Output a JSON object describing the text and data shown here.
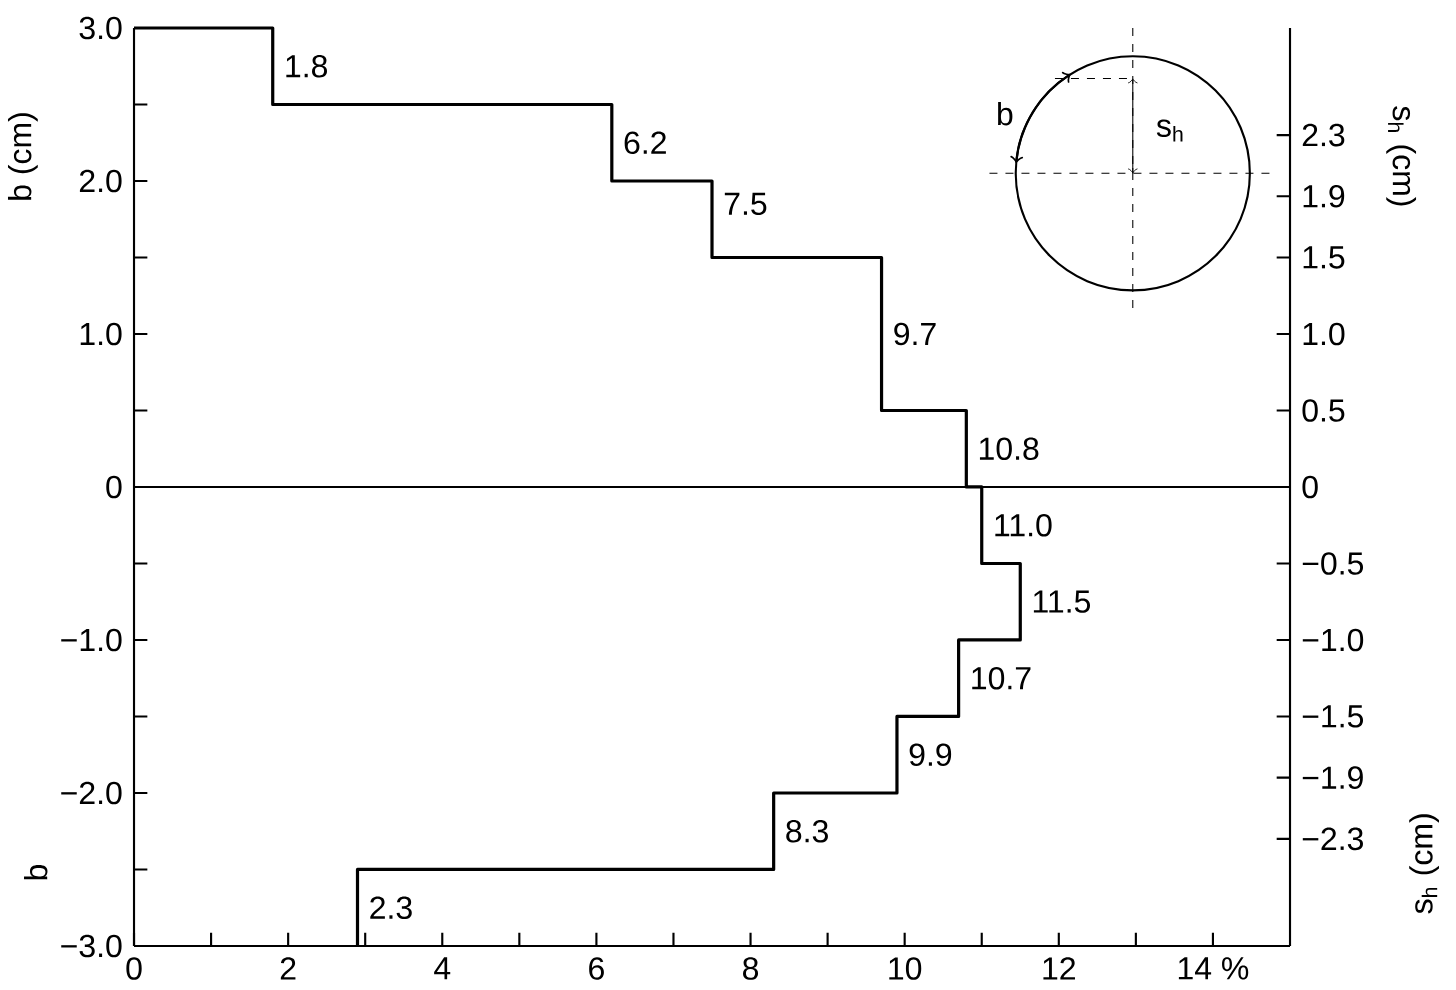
{
  "chart_data": {
    "type": "line",
    "ylabel": "b (cm)",
    "y2label": "s$_{h}$ (cm)",
    "x": [
      0,
      1.8,
      1.8,
      6.2,
      6.2,
      7.5,
      7.5,
      9.7,
      9.7,
      10.8,
      10.8,
      11.0,
      11.0,
      11.5,
      11.5,
      10.7,
      10.7,
      9.9,
      9.9,
      8.3,
      8.3,
      2.9,
      2.9
    ],
    "series": [
      {
        "color": "#000000",
        "values": [
          3,
          3,
          2.5,
          2.5,
          2,
          2,
          1.5,
          1.5,
          0.5,
          0.5,
          0,
          0,
          -0.5,
          -0.5,
          -1,
          -1,
          -1.5,
          -1.5,
          -2,
          -2,
          -2.5,
          -2.5,
          -3
        ]
      }
    ],
    "xlim": [
      0,
      15
    ],
    "ylim": [
      -3,
      3
    ],
    "y2lim": [
      -3,
      3
    ],
    "xticks": [
      0,
      {
        "value": 1,
        "label": null
      },
      2,
      {
        "value": 3,
        "label": null
      },
      4,
      {
        "value": 5,
        "label": null
      },
      6,
      {
        "value": 7,
        "label": null
      },
      8,
      {
        "value": 9,
        "label": null
      },
      10,
      {
        "value": 11,
        "label": null
      },
      12,
      {
        "value": 13,
        "label": null
      },
      {
        "value": 14,
        "label": "14 %"
      }
    ],
    "yticks": [
      {
        "value": -3,
        "label": "−3.0"
      },
      {
        "value": -2.5,
        "label": null
      },
      {
        "value": -2,
        "label": "−2.0"
      },
      {
        "value": -1.5,
        "label": null
      },
      {
        "value": -1,
        "label": "−1.0"
      },
      {
        "value": -0.5,
        "label": null
      },
      0,
      {
        "value": 0.5,
        "label": null
      },
      {
        "value": 1,
        "label": "1.0"
      },
      {
        "value": 1.5,
        "label": null
      },
      {
        "value": 2,
        "label": "2.0"
      },
      {
        "value": 2.5,
        "label": null
      },
      {
        "value": 3,
        "label": "3.0"
      }
    ],
    "y2ticks": [
      {
        "value": -2.3,
        "label": "−2.3"
      },
      {
        "value": -1.9,
        "label": "−1.9"
      },
      {
        "value": -1.5,
        "label": "−1.5"
      },
      {
        "value": -1,
        "label": "−1.0"
      },
      {
        "value": -0.5,
        "label": "−0.5"
      },
      0,
      {
        "value": 0.5,
        "label": "0.5"
      },
      {
        "value": 1,
        "label": "1.0"
      },
      {
        "value": 1.5,
        "label": "1.5"
      },
      {
        "value": 1.9,
        "label": "1.9"
      },
      {
        "value": 2.3,
        "label": "2.3"
      }
    ],
    "ref_lines": [
      {
        "axis": "y",
        "value": 0,
        "color": "#000000"
      }
    ],
    "annotations": [
      {
        "text": "1.8",
        "x": 1.8,
        "y": 2.75
      },
      {
        "text": "6.2",
        "x": 6.2,
        "y": 2.25
      },
      {
        "text": "7.5",
        "x": 7.5,
        "y": 1.85
      },
      {
        "text": "9.7",
        "x": 9.7,
        "y": 1.0
      },
      {
        "text": "10.8",
        "x": 10.8,
        "y": 0.25
      },
      {
        "text": "11.0",
        "x": 11.0,
        "y": -0.25
      },
      {
        "text": "11.5",
        "x": 11.5,
        "y": -0.75
      },
      {
        "text": "10.7",
        "x": 10.7,
        "y": -1.25
      },
      {
        "text": "9.9",
        "x": 9.9,
        "y": -1.75
      },
      {
        "text": "8.3",
        "x": 8.3,
        "y": -2.25
      },
      {
        "text": "2.3",
        "x": 2.9,
        "y": -2.75
      },
      "b",
      "s$_{h}$ (cm)",
      "b",
      "s$_{h}$"
    ],
    "grid": false,
    "marker": "none",
    "line_style": "solid"
  }
}
